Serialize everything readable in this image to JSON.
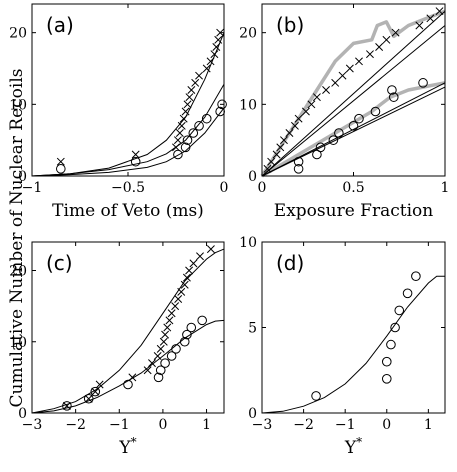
{
  "figure": {
    "ylabel": "Cumulative Number of Nuclear Recoils"
  },
  "chart_data": [
    {
      "panel": "a",
      "type": "scatter",
      "label": "(a)",
      "xlabel": "Time of Veto (ms)",
      "xlim": [
        -1,
        0
      ],
      "ylim": [
        0,
        24
      ],
      "xticks": [
        -1,
        -0.5,
        0
      ],
      "xticklabels": [
        "-1",
        "-0.5",
        "0"
      ],
      "yticks": [
        0,
        10,
        20
      ],
      "yticklabels": [
        "0",
        "10",
        "20"
      ],
      "series": [
        {
          "marker": "x",
          "points": [
            [
              -0.85,
              2
            ],
            [
              -0.46,
              3
            ],
            [
              -0.25,
              4
            ],
            [
              -0.24,
              5
            ],
            [
              -0.23,
              6
            ],
            [
              -0.22,
              7
            ],
            [
              -0.21,
              8
            ],
            [
              -0.2,
              9
            ],
            [
              -0.19,
              10
            ],
            [
              -0.18,
              11
            ],
            [
              -0.17,
              12
            ],
            [
              -0.15,
              13
            ],
            [
              -0.13,
              14
            ],
            [
              -0.09,
              15
            ],
            [
              -0.07,
              16
            ],
            [
              -0.05,
              17
            ],
            [
              -0.04,
              18
            ],
            [
              -0.03,
              19
            ],
            [
              -0.02,
              20
            ]
          ]
        },
        {
          "marker": "o",
          "points": [
            [
              -0.85,
              1
            ],
            [
              -0.46,
              2
            ],
            [
              -0.24,
              3
            ],
            [
              -0.2,
              4
            ],
            [
              -0.19,
              5
            ],
            [
              -0.16,
              6
            ],
            [
              -0.13,
              7
            ],
            [
              -0.09,
              8
            ],
            [
              -0.02,
              9
            ],
            [
              -0.01,
              10
            ]
          ]
        }
      ],
      "lines": [
        {
          "points": [
            [
              -1,
              0
            ],
            [
              -0.8,
              0.3
            ],
            [
              -0.6,
              1.1
            ],
            [
              -0.4,
              3
            ],
            [
              -0.3,
              5
            ],
            [
              -0.2,
              8.2
            ],
            [
              -0.1,
              13.5
            ],
            [
              0,
              20
            ]
          ]
        },
        {
          "points": [
            [
              -1,
              0
            ],
            [
              -0.8,
              0.3
            ],
            [
              -0.6,
              0.9
            ],
            [
              -0.4,
              2
            ],
            [
              -0.3,
              3.1
            ],
            [
              -0.2,
              5
            ],
            [
              -0.1,
              8.2
            ],
            [
              0,
              12.8
            ]
          ]
        },
        {
          "points": [
            [
              -1,
              0
            ],
            [
              -0.8,
              0.2
            ],
            [
              -0.6,
              0.5
            ],
            [
              -0.4,
              1.2
            ],
            [
              -0.3,
              2
            ],
            [
              -0.2,
              3.5
            ],
            [
              -0.1,
              6
            ],
            [
              0,
              9.5
            ]
          ]
        }
      ]
    },
    {
      "panel": "b",
      "type": "scatter",
      "label": "(b)",
      "xlabel": "Exposure Fraction",
      "xlim": [
        0,
        1
      ],
      "ylim": [
        0,
        24
      ],
      "xticks": [
        0,
        0.5,
        1
      ],
      "xticklabels": [
        "0",
        "0.5",
        "1"
      ],
      "yticks": [
        0,
        10,
        20
      ],
      "yticklabels": [
        "0",
        "10",
        "20"
      ],
      "series": [
        {
          "marker": "x",
          "points": [
            [
              0.03,
              1
            ],
            [
              0.05,
              2
            ],
            [
              0.08,
              3
            ],
            [
              0.1,
              4
            ],
            [
              0.12,
              5
            ],
            [
              0.15,
              6
            ],
            [
              0.18,
              7
            ],
            [
              0.2,
              8
            ],
            [
              0.24,
              9
            ],
            [
              0.27,
              10
            ],
            [
              0.3,
              11
            ],
            [
              0.35,
              12
            ],
            [
              0.4,
              13
            ],
            [
              0.44,
              14
            ],
            [
              0.48,
              15
            ],
            [
              0.53,
              16
            ],
            [
              0.59,
              17
            ],
            [
              0.64,
              18
            ],
            [
              0.68,
              19
            ],
            [
              0.73,
              20
            ],
            [
              0.86,
              21
            ],
            [
              0.92,
              22
            ],
            [
              0.97,
              23
            ]
          ]
        },
        {
          "marker": "o",
          "points": [
            [
              0.2,
              1
            ],
            [
              0.2,
              2
            ],
            [
              0.3,
              3
            ],
            [
              0.32,
              4
            ],
            [
              0.39,
              5
            ],
            [
              0.42,
              6
            ],
            [
              0.5,
              7
            ],
            [
              0.53,
              8
            ],
            [
              0.62,
              9
            ],
            [
              0.72,
              11
            ],
            [
              0.71,
              12
            ],
            [
              0.88,
              13
            ]
          ]
        }
      ],
      "lines": [
        {
          "points": [
            [
              0,
              0
            ],
            [
              1,
              23
            ]
          ]
        },
        {
          "points": [
            [
              0,
              0
            ],
            [
              1,
              21
            ]
          ]
        },
        {
          "points": [
            [
              0,
              0
            ],
            [
              1,
              13
            ]
          ]
        },
        {
          "points": [
            [
              0,
              0
            ],
            [
              1,
              12.4
            ]
          ]
        }
      ],
      "bands": [
        {
          "color": "#b3b3b3",
          "points": [
            [
              0,
              0
            ],
            [
              0.1,
              4
            ],
            [
              0.2,
              8
            ],
            [
              0.3,
              12
            ],
            [
              0.4,
              16
            ],
            [
              0.5,
              18.5
            ],
            [
              0.6,
              19
            ],
            [
              0.63,
              21
            ],
            [
              0.68,
              21.5
            ],
            [
              0.72,
              19.5
            ],
            [
              0.8,
              21
            ],
            [
              0.9,
              22
            ],
            [
              1,
              23
            ]
          ]
        },
        {
          "color": "#b3b3b3",
          "points": [
            [
              0,
              0
            ],
            [
              0.1,
              1.5
            ],
            [
              0.2,
              3
            ],
            [
              0.3,
              4.5
            ],
            [
              0.4,
              6
            ],
            [
              0.5,
              7.5
            ],
            [
              0.6,
              9
            ],
            [
              0.65,
              10
            ],
            [
              0.7,
              11
            ],
            [
              0.8,
              12
            ],
            [
              0.9,
              12.5
            ],
            [
              1,
              13
            ]
          ]
        }
      ]
    },
    {
      "panel": "c",
      "type": "scatter",
      "label": "(c)",
      "xlabel": "Y*",
      "xlim": [
        -3,
        1.4
      ],
      "ylim": [
        0,
        24
      ],
      "xticks": [
        -3,
        -2,
        -1,
        0,
        1
      ],
      "xticklabels": [
        "-3",
        "-2",
        "-1",
        "0",
        "1"
      ],
      "yticks": [
        0,
        10,
        20
      ],
      "yticklabels": [
        "0",
        "10",
        "20"
      ],
      "series": [
        {
          "marker": "x",
          "points": [
            [
              -2.2,
              1
            ],
            [
              -1.7,
              2
            ],
            [
              -1.55,
              3
            ],
            [
              -1.45,
              4
            ],
            [
              -0.7,
              5
            ],
            [
              -0.35,
              6
            ],
            [
              -0.25,
              7
            ],
            [
              -0.12,
              8
            ],
            [
              -0.05,
              9
            ],
            [
              0.02,
              10
            ],
            [
              0.05,
              11
            ],
            [
              0.1,
              12
            ],
            [
              0.15,
              13
            ],
            [
              0.2,
              14
            ],
            [
              0.28,
              15
            ],
            [
              0.35,
              16
            ],
            [
              0.42,
              17
            ],
            [
              0.5,
              18
            ],
            [
              0.55,
              19
            ],
            [
              0.6,
              20
            ],
            [
              0.7,
              21
            ],
            [
              0.85,
              22
            ],
            [
              1.1,
              23
            ]
          ]
        },
        {
          "marker": "o",
          "points": [
            [
              -2.2,
              1
            ],
            [
              -1.7,
              2
            ],
            [
              -1.55,
              3
            ],
            [
              -0.8,
              4
            ],
            [
              -0.1,
              5
            ],
            [
              -0.05,
              6
            ],
            [
              0.05,
              7
            ],
            [
              0.2,
              8
            ],
            [
              0.3,
              9
            ],
            [
              0.5,
              10
            ],
            [
              0.55,
              11
            ],
            [
              0.65,
              12
            ],
            [
              0.9,
              13
            ]
          ]
        }
      ],
      "lines": [
        {
          "points": [
            [
              -3,
              0
            ],
            [
              -2.5,
              0.6
            ],
            [
              -2,
              1.6
            ],
            [
              -1.5,
              3.4
            ],
            [
              -1,
              6
            ],
            [
              -0.5,
              9.5
            ],
            [
              0,
              14
            ],
            [
              0.5,
              18.5
            ],
            [
              1,
              21.6
            ],
            [
              1.2,
              22.5
            ],
            [
              1.4,
              23
            ]
          ]
        },
        {
          "points": [
            [
              -3,
              0
            ],
            [
              -2.5,
              0.3
            ],
            [
              -2,
              1
            ],
            [
              -1.5,
              2.2
            ],
            [
              -1,
              3.8
            ],
            [
              -0.5,
              5.6
            ],
            [
              0,
              8
            ],
            [
              0.5,
              10.5
            ],
            [
              1,
              12.4
            ],
            [
              1.2,
              12.9
            ],
            [
              1.4,
              13
            ]
          ]
        }
      ]
    },
    {
      "panel": "d",
      "type": "scatter",
      "label": "(d)",
      "xlabel": "Y*",
      "xlim": [
        -3,
        1.4
      ],
      "ylim": [
        0,
        10
      ],
      "xticks": [
        -3,
        -2,
        -1,
        0,
        1
      ],
      "xticklabels": [
        "-3",
        "-2",
        "-1",
        "0",
        "1"
      ],
      "yticks": [
        0,
        5,
        10
      ],
      "yticklabels": [
        "0",
        "5",
        "10"
      ],
      "series": [
        {
          "marker": "o",
          "points": [
            [
              -1.7,
              1
            ],
            [
              0.0,
              2
            ],
            [
              0.0,
              3
            ],
            [
              0.1,
              4
            ],
            [
              0.2,
              5
            ],
            [
              0.3,
              6
            ],
            [
              0.5,
              7
            ],
            [
              0.7,
              8
            ]
          ]
        }
      ],
      "lines": [
        {
          "points": [
            [
              -3,
              0
            ],
            [
              -2.5,
              0.1
            ],
            [
              -2,
              0.4
            ],
            [
              -1.5,
              0.9
            ],
            [
              -1,
              1.7
            ],
            [
              -0.5,
              2.9
            ],
            [
              0,
              4.5
            ],
            [
              0.5,
              6.2
            ],
            [
              1,
              7.6
            ],
            [
              1.2,
              8
            ],
            [
              1.4,
              8
            ]
          ]
        }
      ]
    }
  ]
}
